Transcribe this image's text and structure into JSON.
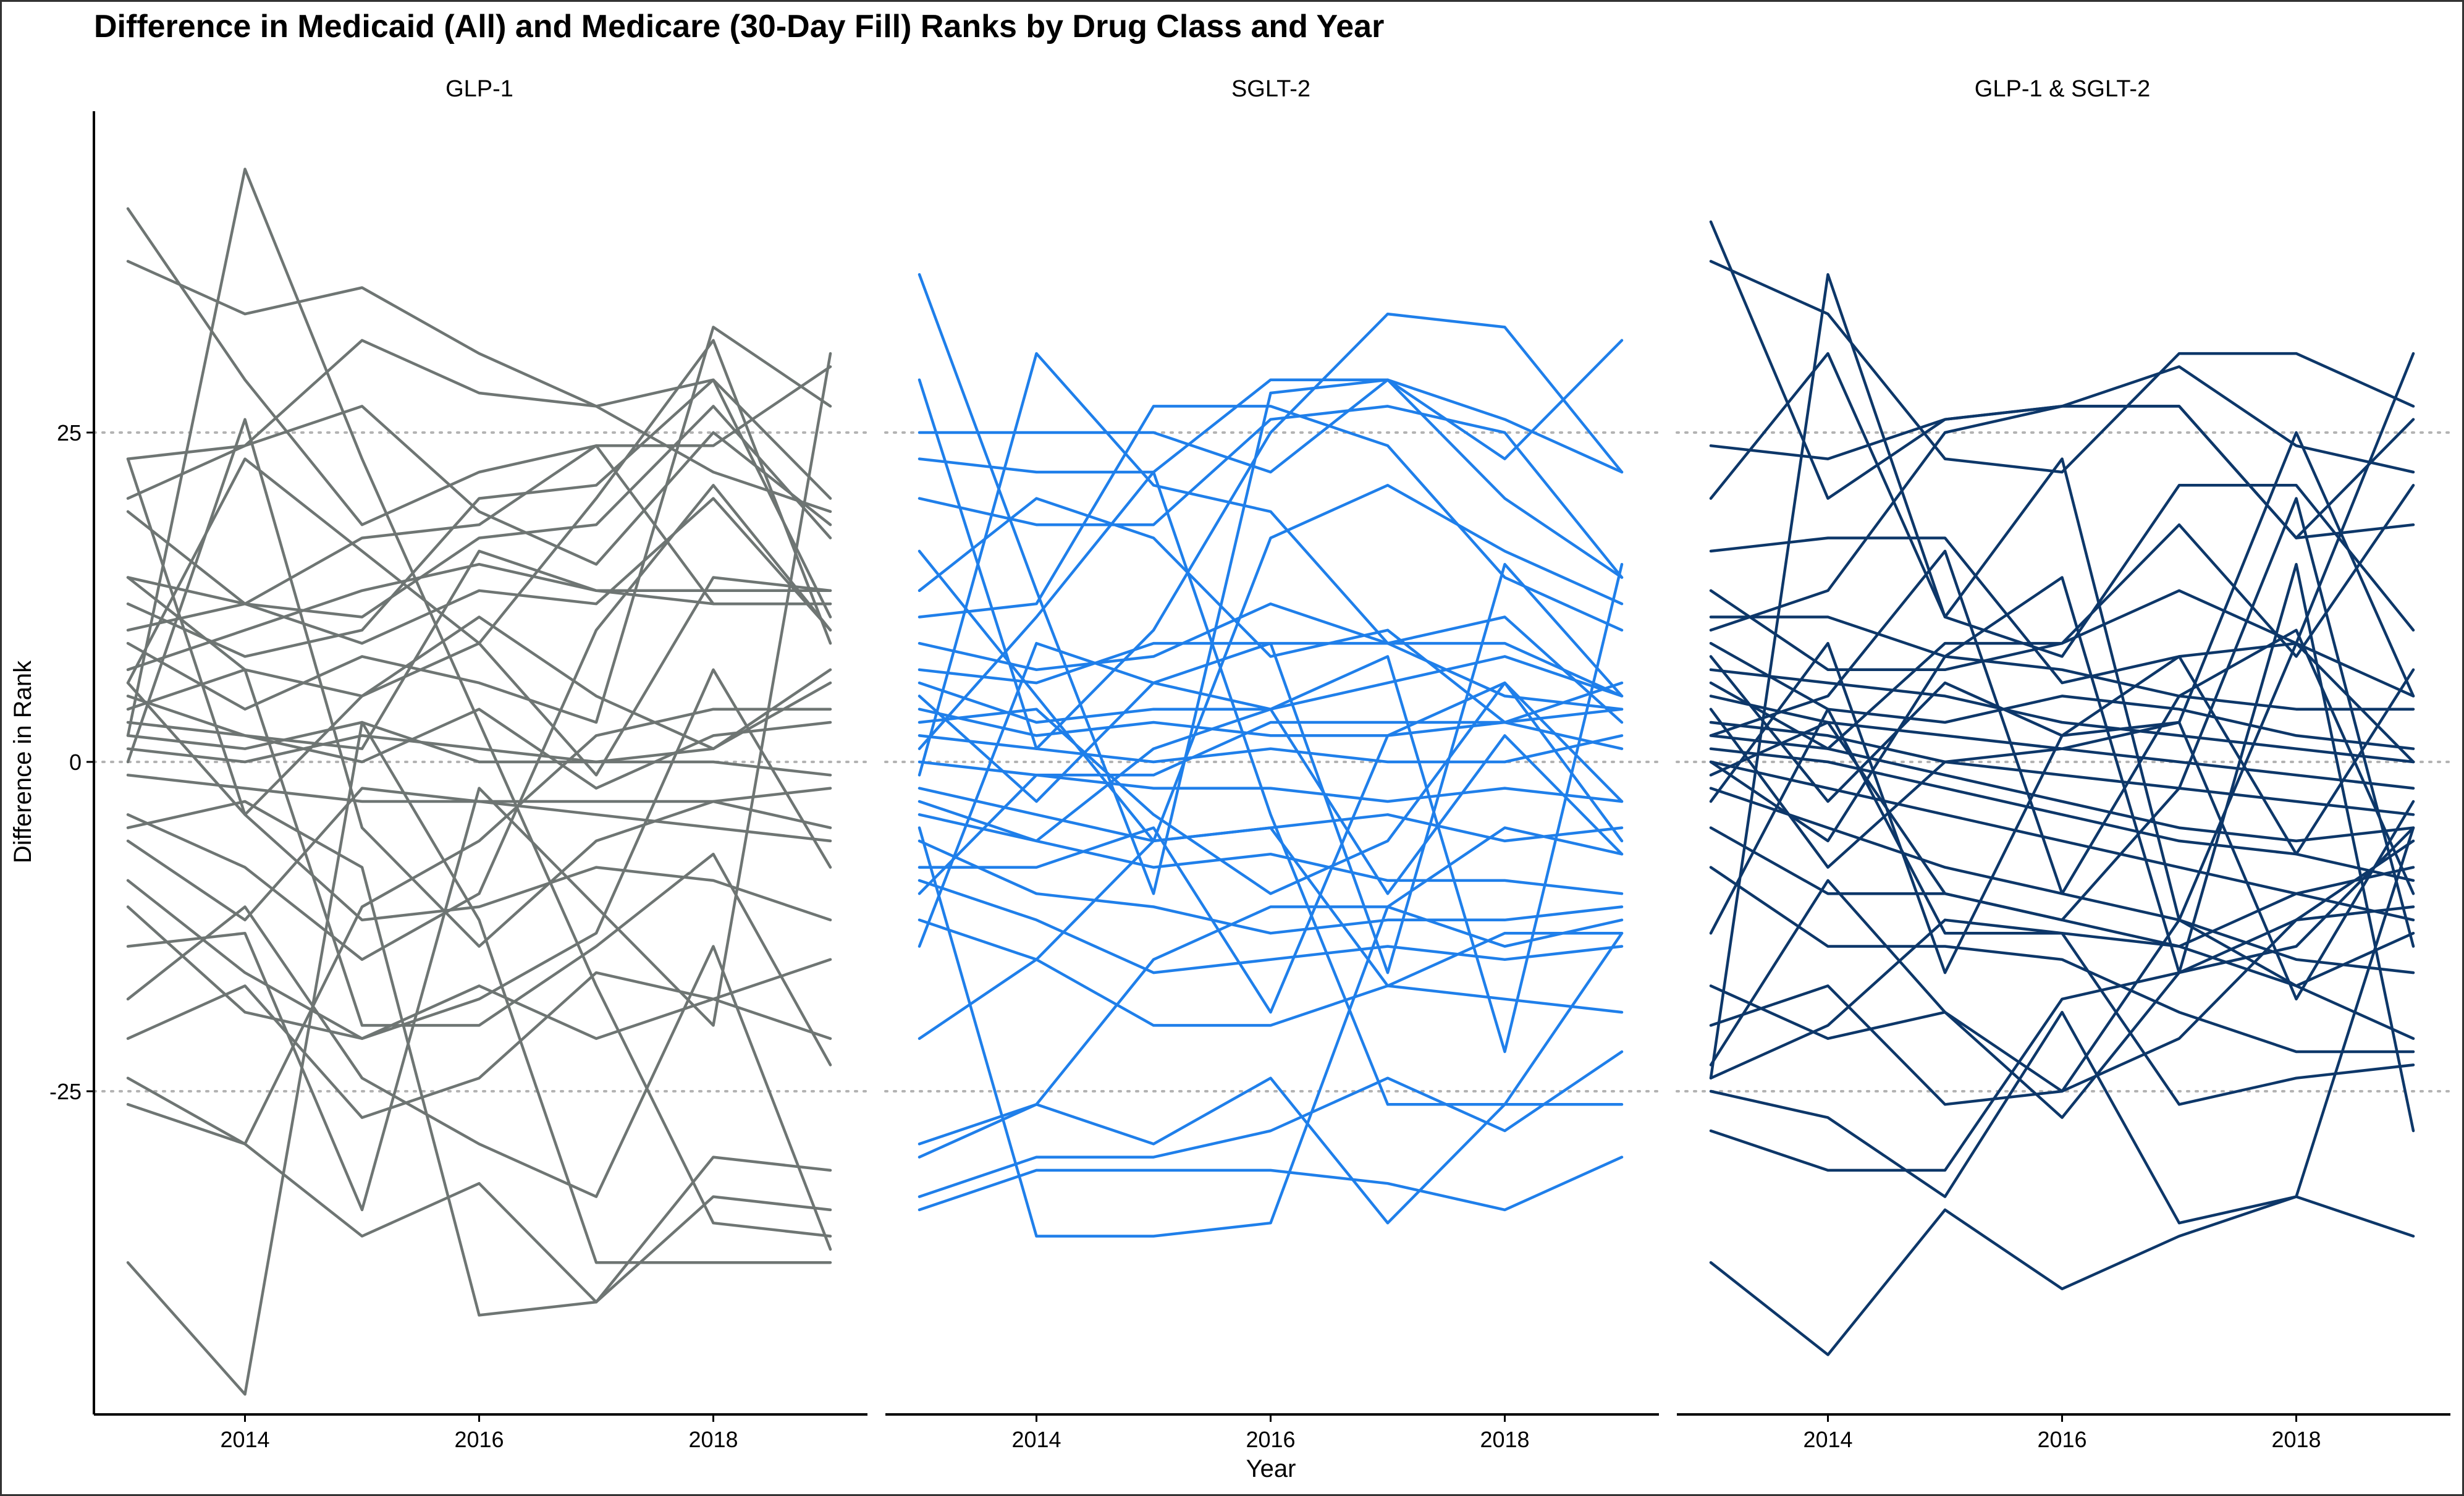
{
  "chart_data": {
    "type": "line",
    "title": "Difference in Medicaid (All) and Medicare (30-Day Fill) Ranks by Drug Class and Year",
    "xlabel": "Year",
    "ylabel": "Difference in Rank",
    "xlim": [
      2013,
      2019
    ],
    "ylim": [
      -49,
      50
    ],
    "x_ticks": [
      2014,
      2016,
      2018
    ],
    "y_ticks": [
      -25,
      0,
      25
    ],
    "reference_lines": [
      -25,
      0,
      25
    ],
    "x": [
      2013,
      2014,
      2015,
      2016,
      2017,
      2018,
      2019
    ],
    "grid": false,
    "legend": "none",
    "facets": [
      {
        "label": "GLP-1",
        "color": "#6e7573",
        "series": [
          [
            42,
            29,
            18,
            22,
            24,
            12,
            12
          ],
          [
            38,
            34,
            36,
            31,
            27,
            22,
            19
          ],
          [
            23,
            24,
            32,
            28,
            27,
            29,
            20
          ],
          [
            20,
            24,
            27,
            19,
            15,
            25,
            18
          ],
          [
            19,
            12,
            17,
            18,
            24,
            24,
            30
          ],
          [
            14,
            12,
            11,
            17,
            18,
            27,
            17
          ],
          [
            12,
            8,
            10,
            20,
            21,
            29,
            11
          ],
          [
            10,
            12,
            9,
            13,
            12,
            20,
            10
          ],
          [
            9,
            4,
            8,
            6,
            3,
            33,
            27
          ],
          [
            7,
            10,
            13,
            15,
            13,
            12,
            12
          ],
          [
            6,
            -4,
            5,
            9,
            20,
            32,
            9
          ],
          [
            5,
            2,
            1,
            16,
            13,
            13,
            13
          ],
          [
            4,
            7,
            5,
            11,
            5,
            1,
            7
          ],
          [
            3,
            2,
            0,
            4,
            -2,
            2,
            3
          ],
          [
            2,
            1,
            3,
            0,
            0,
            1,
            6
          ],
          [
            1,
            0,
            2,
            1,
            0,
            0,
            -1
          ],
          [
            0,
            26,
            -5,
            -14,
            -6,
            -3,
            -2
          ],
          [
            -1,
            -2,
            -3,
            -3,
            -4,
            -5,
            -6
          ],
          [
            -4,
            -8,
            -15,
            -10,
            10,
            21,
            10
          ],
          [
            -6,
            -12,
            -2,
            -3,
            -3,
            -3,
            -5
          ],
          [
            -9,
            -16,
            -21,
            -18,
            -13,
            7,
            -8
          ],
          [
            -14,
            -13,
            -34,
            -2,
            -11,
            -20,
            31
          ],
          [
            -18,
            -11,
            -24,
            -29,
            -33,
            -14,
            -37
          ],
          [
            -21,
            -17,
            -27,
            -24,
            -16,
            -18,
            -15
          ],
          [
            -24,
            -29,
            -11,
            -6,
            2,
            4,
            4
          ],
          [
            -26,
            -29,
            -36,
            -32,
            -41,
            -33,
            -34
          ],
          [
            -38,
            -48,
            3,
            -12,
            -38,
            -38,
            -38
          ],
          [
            23,
            -4,
            -12,
            -11,
            -8,
            -9,
            -12
          ],
          [
            14,
            7,
            -20,
            -20,
            -14,
            -7,
            -23
          ],
          [
            6,
            23,
            16,
            9,
            -1,
            14,
            13
          ],
          [
            2,
            45,
            23,
            3,
            -17,
            -35,
            -36
          ],
          [
            -5,
            -3,
            -8,
            -42,
            -41,
            -30,
            -31
          ],
          [
            -11,
            -19,
            -21,
            -17,
            -21,
            -18,
            -21
          ]
        ]
      },
      {
        "label": "SGLT-2",
        "color": "#1f7fea",
        "series": [
          [
            37,
            13,
            -10,
            28,
            29,
            20,
            14
          ],
          [
            29,
            1,
            10,
            25,
            34,
            33,
            22
          ],
          [
            25,
            25,
            25,
            22,
            29,
            26,
            22
          ],
          [
            23,
            22,
            22,
            29,
            29,
            23,
            32
          ],
          [
            20,
            18,
            18,
            26,
            27,
            25,
            14
          ],
          [
            16,
            5,
            -6,
            17,
            21,
            16,
            12
          ],
          [
            13,
            20,
            17,
            8,
            10,
            3,
            6
          ],
          [
            11,
            12,
            27,
            27,
            24,
            14,
            10
          ],
          [
            9,
            7,
            8,
            12,
            9,
            11,
            3
          ],
          [
            6,
            3,
            4,
            4,
            6,
            8,
            5
          ],
          [
            4,
            2,
            3,
            2,
            2,
            3,
            4
          ],
          [
            2,
            1,
            0,
            1,
            0,
            0,
            2
          ],
          [
            0,
            -1,
            -2,
            -2,
            -3,
            -2,
            -3
          ],
          [
            -2,
            -4,
            -6,
            -5,
            -4,
            -6,
            -5
          ],
          [
            -4,
            -6,
            -8,
            -7,
            -9,
            -9,
            -10
          ],
          [
            -6,
            -10,
            -11,
            -13,
            -12,
            -12,
            -11
          ],
          [
            -9,
            -12,
            -16,
            -15,
            -14,
            -15,
            -14
          ],
          [
            -12,
            -15,
            -20,
            -20,
            -17,
            -18,
            -19
          ],
          [
            -14,
            9,
            6,
            4,
            8,
            -22,
            15
          ],
          [
            -21,
            -15,
            -6,
            -5,
            -17,
            -13,
            -13
          ],
          [
            -29,
            -26,
            -15,
            -11,
            -11,
            -14,
            -12
          ],
          [
            -30,
            -26,
            -29,
            -24,
            -35,
            -26,
            -13
          ],
          [
            -33,
            -30,
            -30,
            -28,
            -24,
            -28,
            -22
          ],
          [
            -34,
            -31,
            -31,
            -31,
            -32,
            -34,
            -30
          ],
          [
            -5,
            -36,
            -36,
            -35,
            -11,
            -5,
            -7
          ],
          [
            1,
            11,
            22,
            -4,
            -26,
            -26,
            -26
          ],
          [
            -1,
            31,
            21,
            19,
            9,
            9,
            5
          ],
          [
            -8,
            -8,
            -5,
            -19,
            2,
            6,
            -3
          ],
          [
            5,
            -3,
            6,
            9,
            -16,
            15,
            5
          ],
          [
            3,
            4,
            -4,
            -10,
            -6,
            6,
            -6
          ],
          [
            -3,
            -6,
            1,
            4,
            -10,
            2,
            -7
          ],
          [
            7,
            6,
            9,
            9,
            9,
            5,
            4
          ],
          [
            -10,
            -1,
            -1,
            3,
            3,
            3,
            1
          ]
        ]
      },
      {
        "label": "GLP-1 & SGLT-2",
        "color": "#0d3769",
        "series": [
          [
            41,
            20,
            26,
            27,
            27,
            17,
            18
          ],
          [
            38,
            34,
            23,
            22,
            31,
            31,
            27
          ],
          [
            24,
            23,
            26,
            27,
            30,
            24,
            22
          ],
          [
            20,
            31,
            11,
            8,
            21,
            21,
            10
          ],
          [
            16,
            17,
            17,
            6,
            8,
            9,
            0
          ],
          [
            13,
            7,
            7,
            9,
            13,
            9,
            5
          ],
          [
            11,
            11,
            8,
            7,
            5,
            4,
            4
          ],
          [
            9,
            4,
            3,
            5,
            4,
            2,
            1
          ],
          [
            7,
            6,
            5,
            3,
            2,
            1,
            0
          ],
          [
            5,
            3,
            2,
            1,
            0,
            -1,
            -2
          ],
          [
            3,
            2,
            0,
            -1,
            -2,
            -3,
            -4
          ],
          [
            2,
            1,
            -1,
            -3,
            -5,
            -6,
            -5
          ],
          [
            1,
            0,
            -2,
            -4,
            -6,
            -7,
            -9
          ],
          [
            0,
            -2,
            -4,
            -6,
            -8,
            -10,
            -12
          ],
          [
            -2,
            -5,
            -8,
            -10,
            -12,
            -15,
            -16
          ],
          [
            -5,
            -10,
            -10,
            -12,
            -14,
            -17,
            -21
          ],
          [
            -8,
            -14,
            -14,
            -15,
            -19,
            -22,
            -22
          ],
          [
            -13,
            4,
            -13,
            -13,
            -26,
            -24,
            -23
          ],
          [
            -17,
            -21,
            -19,
            -25,
            -21,
            -12,
            -6
          ],
          [
            -20,
            -17,
            -26,
            -25,
            -12,
            -17,
            -13
          ],
          [
            -23,
            -9,
            -19,
            -27,
            -16,
            -14,
            -5
          ],
          [
            -24,
            -20,
            -12,
            -13,
            -14,
            -10,
            -8
          ],
          [
            -28,
            -31,
            -31,
            -18,
            -16,
            -12,
            -11
          ],
          [
            -38,
            -45,
            -34,
            -40,
            -36,
            -33,
            -36
          ],
          [
            -25,
            -27,
            -33,
            -19,
            -35,
            -33,
            -5
          ],
          [
            -24,
            37,
            11,
            23,
            -12,
            9,
            31
          ],
          [
            10,
            13,
            25,
            27,
            27,
            17,
            26
          ],
          [
            6,
            1,
            9,
            9,
            18,
            8,
            21
          ],
          [
            4,
            -8,
            0,
            1,
            3,
            25,
            5
          ],
          [
            2,
            5,
            16,
            -10,
            5,
            10,
            -10
          ],
          [
            0,
            -6,
            8,
            14,
            -16,
            15,
            -28
          ],
          [
            -1,
            3,
            -10,
            -12,
            -2,
            20,
            -14
          ],
          [
            8,
            -3,
            6,
            2,
            8,
            -7,
            7
          ],
          [
            -3,
            9,
            -16,
            2,
            3,
            -18,
            -3
          ]
        ]
      }
    ]
  }
}
